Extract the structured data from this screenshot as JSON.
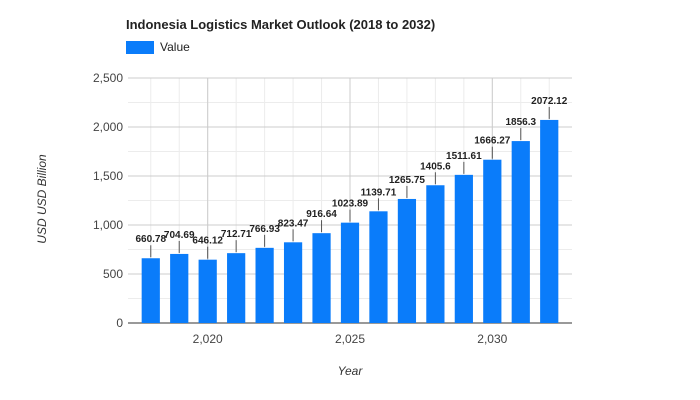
{
  "chart_data": {
    "type": "bar",
    "title": "Indonesia Logistics Market Outlook (2018 to 2032)",
    "xlabel": "Year",
    "ylabel": "USD USD Billion",
    "legend": {
      "position": "top-left",
      "entries": [
        "Value"
      ]
    },
    "x": [
      2018,
      2019,
      2020,
      2021,
      2022,
      2023,
      2024,
      2025,
      2026,
      2027,
      2028,
      2029,
      2030,
      2031,
      2032
    ],
    "series": [
      {
        "name": "Value",
        "values": [
          660.78,
          704.69,
          646.12,
          712.71,
          766.93,
          823.47,
          916.64,
          1023.89,
          1139.71,
          1265.75,
          1405.6,
          1511.61,
          1666.27,
          1856.3,
          2072.12
        ]
      }
    ],
    "data_labels": [
      "660.78",
      "704.69",
      "646.12",
      "712.71",
      "766.93",
      "823.47",
      "916.64",
      "1023.89",
      "1139.71",
      "1265.75",
      "1405.6",
      "1511.61",
      "1666.27",
      "1856.3",
      "2072.12"
    ],
    "ylim": [
      0,
      2500
    ],
    "xlim": [
      2017.2,
      2032.8
    ],
    "y_ticks": [
      0,
      500,
      1000,
      1500,
      2000,
      2500
    ],
    "y_tick_labels": [
      "0",
      "500",
      "1,000",
      "1,500",
      "2,000",
      "2,500"
    ],
    "x_ticks": [
      2020,
      2025,
      2030
    ],
    "x_tick_labels": [
      "2,020",
      "2,025",
      "2,030"
    ],
    "grid": true,
    "bar_color": "#0a7cfa"
  }
}
